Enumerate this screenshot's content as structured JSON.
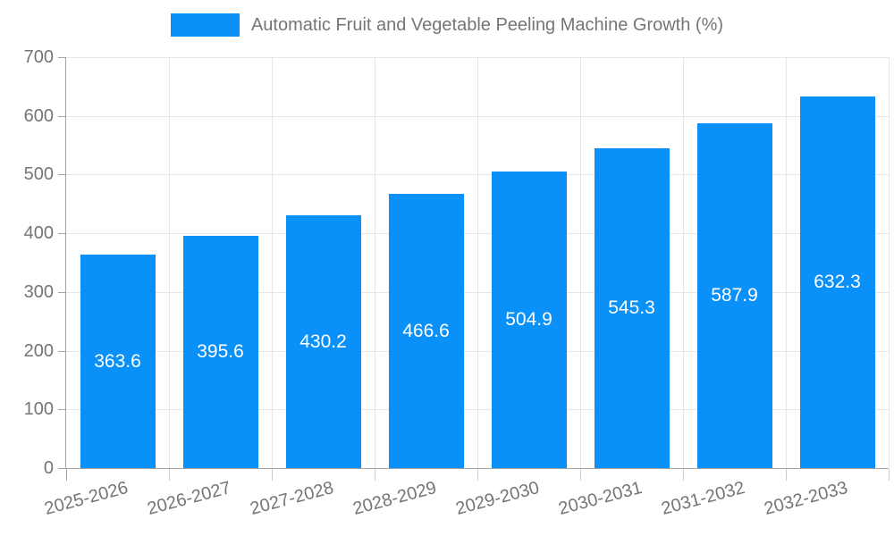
{
  "chart_data": {
    "type": "bar",
    "title": "Automatic Fruit and Vegetable Peeling Machine Growth (%)",
    "categories": [
      "2025-2026",
      "2026-2027",
      "2027-2028",
      "2028-2029",
      "2029-2030",
      "2030-2031",
      "2031-2032",
      "2032-2033"
    ],
    "series": [
      {
        "name": "Automatic Fruit and Vegetable Peeling Machine Growth (%)",
        "values": [
          363.6,
          395.6,
          430.2,
          466.6,
          504.9,
          545.3,
          587.9,
          632.3
        ]
      }
    ],
    "xlabel": "",
    "ylabel": "",
    "ylim": [
      0,
      700
    ],
    "ytick_step": 100,
    "ytick_labels": [
      "0",
      "100",
      "200",
      "300",
      "400",
      "500",
      "600",
      "700"
    ],
    "grid": true,
    "legend_position": "top-center",
    "value_labels": "inside-center",
    "colors": {
      "bar": "#0a90f9",
      "value_text": "#ffffff",
      "text": "#757575",
      "axis": "#a3a3a3",
      "grid": "#e7e7e7",
      "xtick": "#cccccc",
      "background": "#ffffff"
    }
  }
}
